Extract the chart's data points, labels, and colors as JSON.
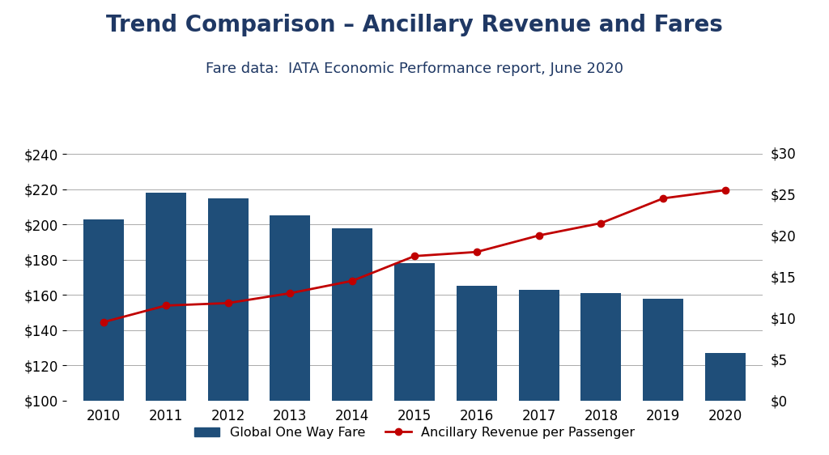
{
  "title": "Trend Comparison – Ancillary Revenue and Fares",
  "subtitle": "Fare data:  IATA Economic Performance report, June 2020",
  "years": [
    2010,
    2011,
    2012,
    2013,
    2014,
    2015,
    2016,
    2017,
    2018,
    2019,
    2020
  ],
  "fare_values": [
    203,
    218,
    215,
    205,
    198,
    178,
    165,
    163,
    161,
    158,
    127
  ],
  "ancillary_values": [
    9.5,
    11.5,
    11.8,
    13.0,
    14.5,
    17.5,
    18.0,
    20.0,
    21.5,
    24.5,
    25.5
  ],
  "bar_color": "#1F4E79",
  "line_color": "#C00000",
  "title_color": "#1F3864",
  "subtitle_color": "#1F3864",
  "left_ylim": [
    100,
    250
  ],
  "right_ylim": [
    0,
    32
  ],
  "left_yticks": [
    100,
    120,
    140,
    160,
    180,
    200,
    220,
    240
  ],
  "right_yticks": [
    0,
    5,
    10,
    15,
    20,
    25,
    30
  ],
  "background_color": "#FFFFFF",
  "plot_background": "#FFFFFF",
  "title_fontsize": 20,
  "subtitle_fontsize": 13,
  "tick_fontsize": 12,
  "legend_label_fare": "Global One Way Fare",
  "legend_label_ancillary": "Ancillary Revenue per Passenger"
}
